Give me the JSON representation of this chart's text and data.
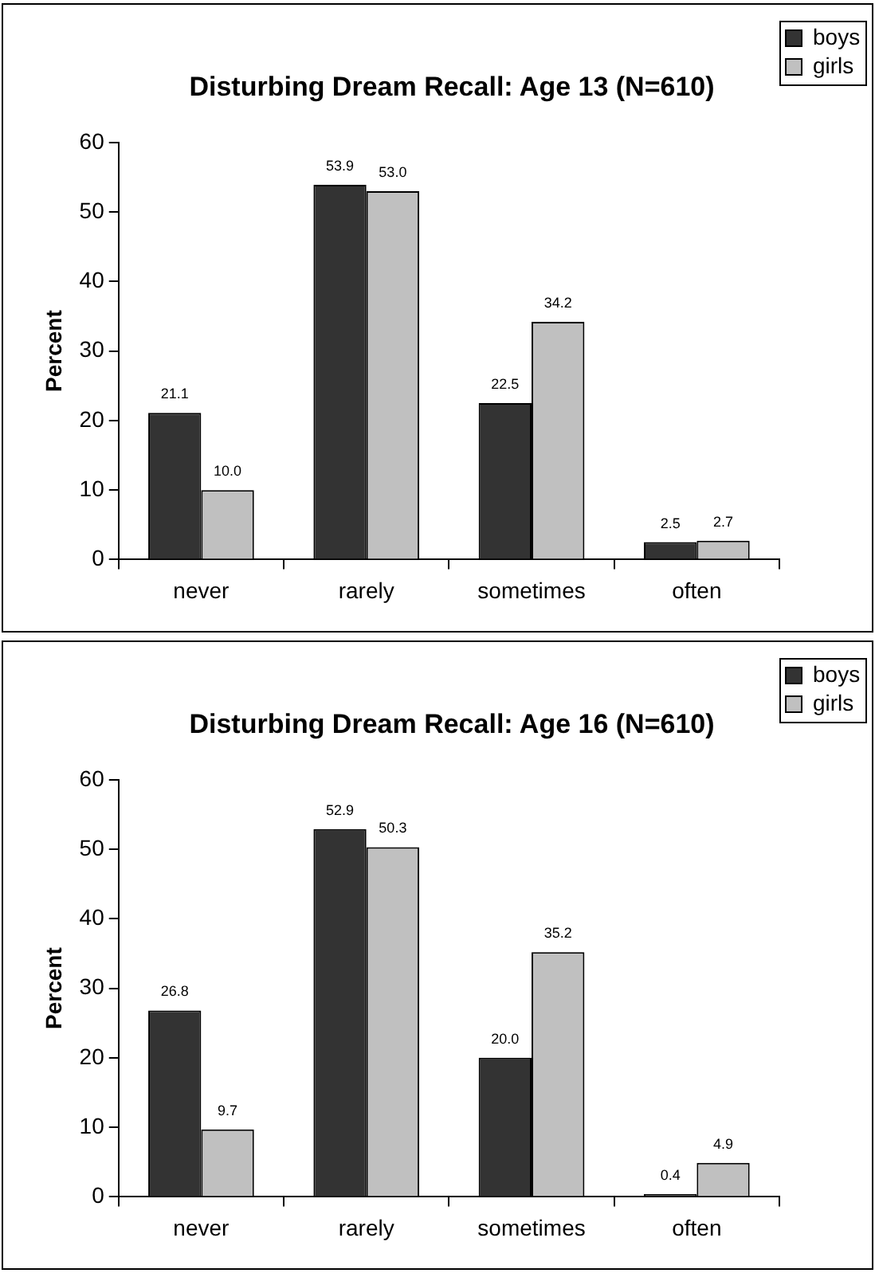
{
  "chart_data": [
    {
      "type": "bar",
      "title": "Disturbing Dream Recall: Age 13 (N=610)",
      "ylabel": "Percent",
      "categories": [
        "never",
        "rarely",
        "sometimes",
        "often"
      ],
      "series": [
        {
          "name": "boys",
          "color": "#333333",
          "values": [
            21.1,
            53.9,
            22.5,
            2.5
          ],
          "value_labels": [
            "21.1",
            "53.9",
            "22.5",
            "2.5"
          ]
        },
        {
          "name": "girls",
          "color": "#c0c0c0",
          "values": [
            10,
            53,
            34.2,
            2.7
          ],
          "value_labels": [
            "10.0",
            "53.0",
            "34.2",
            "2.7"
          ]
        }
      ],
      "ylim": [
        0,
        60
      ],
      "yticks": [
        0,
        10,
        20,
        30,
        40,
        50,
        60
      ],
      "grid": false,
      "legend": "top right"
    },
    {
      "type": "bar",
      "title": "Disturbing Dream Recall: Age 16 (N=610)",
      "ylabel": "Percent",
      "categories": [
        "never",
        "rarely",
        "sometimes",
        "often"
      ],
      "series": [
        {
          "name": "boys",
          "color": "#333333",
          "values": [
            26.8,
            52.9,
            20,
            0.4
          ],
          "value_labels": [
            "26.8",
            "52.9",
            "20.0",
            "0.4"
          ]
        },
        {
          "name": "girls",
          "color": "#c0c0c0",
          "values": [
            9.7,
            50.3,
            35.2,
            4.9
          ],
          "value_labels": [
            "9.7",
            "50.3",
            "35.2",
            "4.9"
          ]
        }
      ],
      "ylim": [
        0,
        60
      ],
      "yticks": [
        0,
        10,
        20,
        30,
        40,
        50,
        60
      ],
      "grid": false,
      "legend": "top right"
    }
  ]
}
